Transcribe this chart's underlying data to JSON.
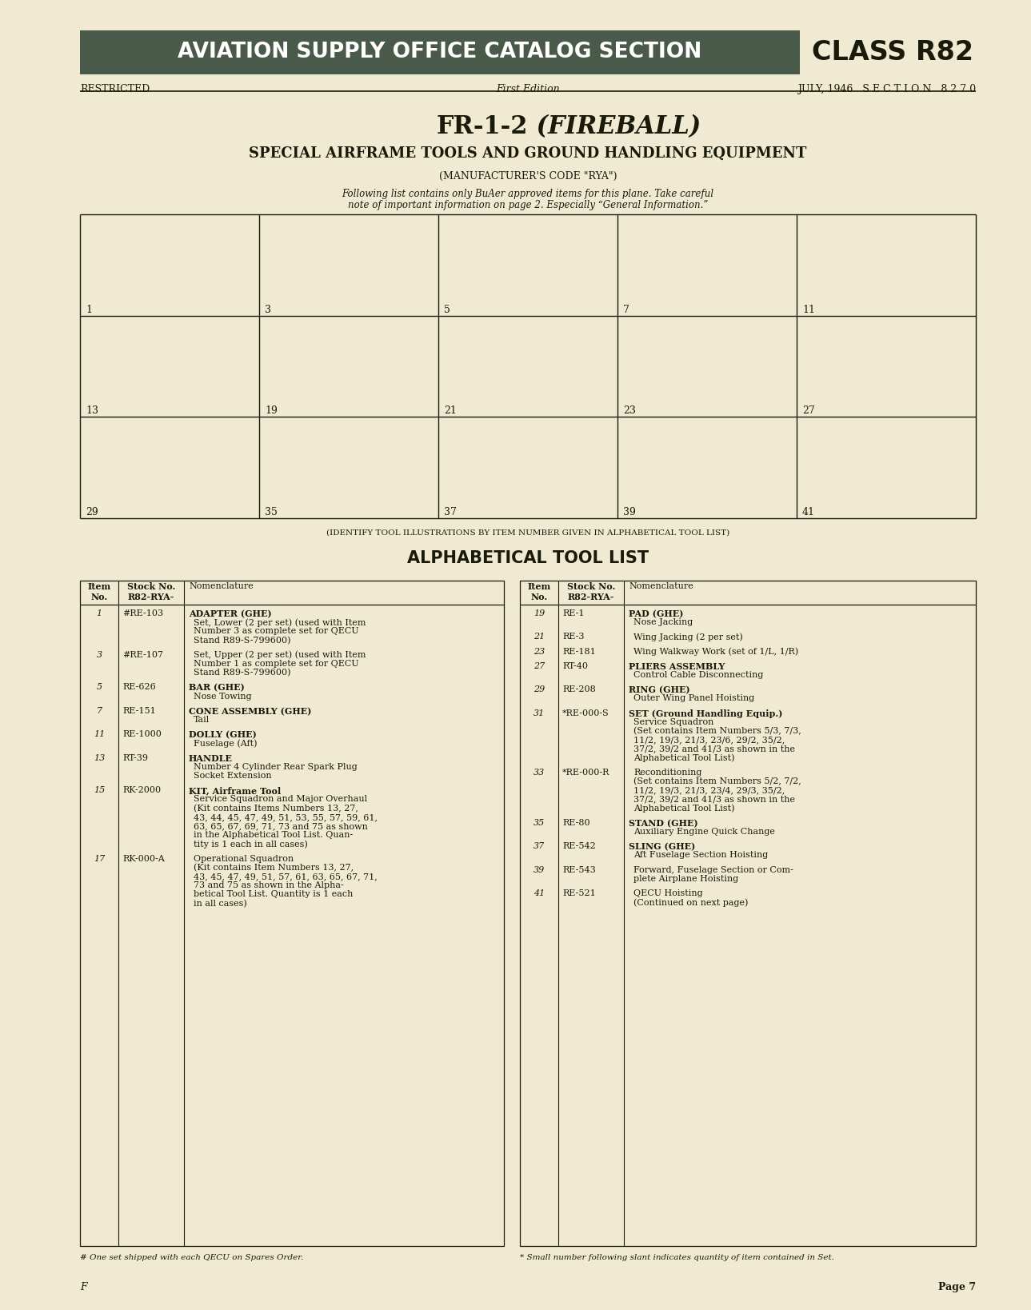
{
  "bg_color": "#f0ead2",
  "header_bg": "#4a5a4a",
  "header_text_color": "#ffffff",
  "header_title": "AVIATION SUPPLY OFFICE CATALOG SECTION",
  "header_class": "CLASS R82",
  "restricted": "RESTRICTED",
  "first_edition": "First Edition",
  "date_section": "JULY, 1946   S E C T I O N   8 2 7 0",
  "main_title_bold": "FR-1-2",
  "main_title_italic": " (FIREBALL)",
  "sub_title": "SPECIAL AIRFRAME TOOLS AND GROUND HANDLING EQUIPMENT",
  "mfr_code": "(MANUFACTURER'S CODE \"RYA\")",
  "note_line1": "Following list contains only BuAer approved items for this plane. Take careful",
  "note_line2": "note of important information on page 2. Especially “General Information.”",
  "identify_caption": "(IDENTIFY TOOL ILLUSTRATIONS BY ITEM NUMBER GIVEN IN ALPHABETICAL TOOL LIST)",
  "tool_list_title": "ALPHABETICAL TOOL LIST",
  "left_items": [
    {
      "item": "1",
      "stock": "#RE-103",
      "name": "ADAPTER (GHE)",
      "desc": "Set, Lower (2 per set) (used with Item\nNumber 3 as complete set for QECU\nStand R89-S-799600)"
    },
    {
      "item": "3",
      "stock": "#RE-107",
      "name": "",
      "desc": "Set, Upper (2 per set) (used with Item\nNumber 1 as complete set for QECU\nStand R89-S-799600)"
    },
    {
      "item": "5",
      "stock": "RE-626",
      "name": "BAR (GHE)",
      "desc": "Nose Towing"
    },
    {
      "item": "7",
      "stock": "RE-151",
      "name": "CONE ASSEMBLY (GHE)",
      "desc": "Tail"
    },
    {
      "item": "11",
      "stock": "RE-1000",
      "name": "DOLLY (GHE)",
      "desc": "Fuselage (Aft)"
    },
    {
      "item": "13",
      "stock": "RT-39",
      "name": "HANDLE",
      "desc": "Number 4 Cylinder Rear Spark Plug\nSocket Extension"
    },
    {
      "item": "15",
      "stock": "RK-2000",
      "name": "KIT, Airframe Tool",
      "desc": "Service Squadron and Major Overhaul\n(Kit contains Items Numbers 13, 27,\n43, 44, 45, 47, 49, 51, 53, 55, 57, 59, 61,\n63, 65, 67, 69, 71, 73 and 75 as shown\nin the Alphabetical Tool List. Quan-\ntity is 1 each in all cases)"
    },
    {
      "item": "17",
      "stock": "RK-000-A",
      "name": "",
      "desc": "Operational Squadron\n(Kit contains Item Numbers 13, 27,\n43, 45, 47, 49, 51, 57, 61, 63, 65, 67, 71,\n73 and 75 as shown in the Alpha-\nbetical Tool List. Quantity is 1 each\nin all cases)"
    }
  ],
  "right_items": [
    {
      "item": "19",
      "stock": "RE-1",
      "name": "PAD (GHE)",
      "desc": "Nose Jacking"
    },
    {
      "item": "21",
      "stock": "RE-3",
      "name": "",
      "desc": "Wing Jacking (2 per set)"
    },
    {
      "item": "23",
      "stock": "RE-181",
      "name": "",
      "desc": "Wing Walkway Work (set of 1/L, 1/R)"
    },
    {
      "item": "27",
      "stock": "RT-40",
      "name": "PLIERS ASSEMBLY",
      "desc": "Control Cable Disconnecting"
    },
    {
      "item": "29",
      "stock": "RE-208",
      "name": "RING (GHE)",
      "desc": "Outer Wing Panel Hoisting"
    },
    {
      "item": "31",
      "stock": "*RE-000-S",
      "name": "SET (Ground Handling Equip.)",
      "desc": "Service Squadron\n(Set contains Item Numbers 5/3, 7/3,\n11/2, 19/3, 21/3, 23/6, 29/2, 35/2,\n37/2, 39/2 and 41/3 as shown in the\nAlphabetical Tool List)"
    },
    {
      "item": "33",
      "stock": "*RE-000-R",
      "name": "",
      "desc": "Reconditioning\n(Set contains Item Numbers 5/2, 7/2,\n11/2, 19/3, 21/3, 23/4, 29/3, 35/2,\n37/2, 39/2 and 41/3 as shown in the\nAlphabetical Tool List)"
    },
    {
      "item": "35",
      "stock": "RE-80",
      "name": "STAND (GHE)",
      "desc": "Auxiliary Engine Quick Change"
    },
    {
      "item": "37",
      "stock": "RE-542",
      "name": "SLING (GHE)",
      "desc": "Aft Fuselage Section Hoisting"
    },
    {
      "item": "39",
      "stock": "RE-543",
      "name": "",
      "desc": "Forward, Fuselage Section or Com-\nplete Airplane Hoisting"
    },
    {
      "item": "41",
      "stock": "RE-521",
      "name": "",
      "desc": "QECU Hoisting\n(Continued on next page)"
    }
  ],
  "footnote1": "# One set shipped with each QECU on Spares Order.",
  "footnote2": "* Small number following slant indicates quantity of item contained in Set.",
  "page_label": "F",
  "page_num": "Page 7",
  "grid_nums": [
    [
      "1",
      "3",
      "5",
      "7",
      "11"
    ],
    [
      "13",
      "19",
      "21",
      "23",
      "27"
    ],
    [
      "29",
      "35",
      "37",
      "39",
      "41"
    ]
  ]
}
